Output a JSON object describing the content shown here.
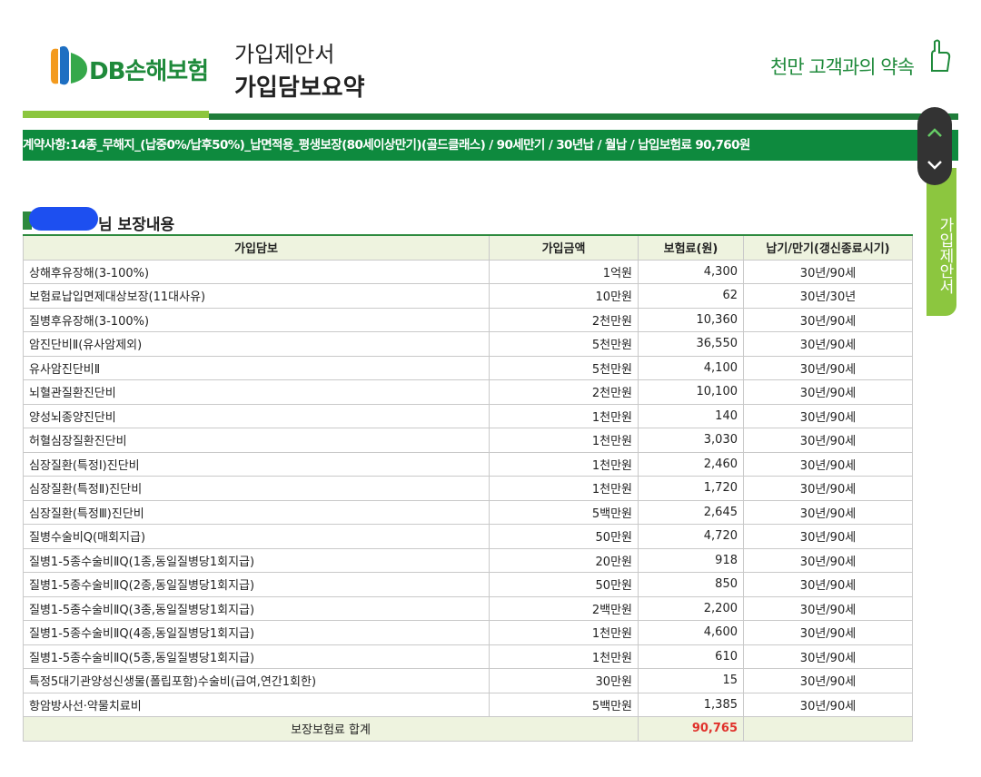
{
  "header": {
    "logo": "DB손해보험",
    "title": "가입제안서",
    "subtitle": "가입담보요약",
    "slogan": "천만 고객과의 약속"
  },
  "banner": "계약사항:14종_무해지_(납중0%/납후50%)_납면적용_평생보장(80세이상만기)(골드클래스) / 90세만기 / 30년납 / 월납 / 납입보험료 90,760원",
  "side_tab": "가입제안서",
  "section_title": "님 보장내용",
  "table": {
    "columns": [
      "가입담보",
      "가입금액",
      "보험료(원)",
      "납기/만기(갱신종료시기)"
    ],
    "rows": [
      [
        "상해후유장해(3-100%)",
        "1억원",
        "4,300",
        "30년/90세"
      ],
      [
        "보험료납입면제대상보장(11대사유)",
        "10만원",
        "62",
        "30년/30년"
      ],
      [
        "질병후유장해(3-100%)",
        "2천만원",
        "10,360",
        "30년/90세"
      ],
      [
        "암진단비Ⅱ(유사암제외)",
        "5천만원",
        "36,550",
        "30년/90세"
      ],
      [
        "유사암진단비Ⅱ",
        "5천만원",
        "4,100",
        "30년/90세"
      ],
      [
        "뇌혈관질환진단비",
        "2천만원",
        "10,100",
        "30년/90세"
      ],
      [
        "양성뇌종양진단비",
        "1천만원",
        "140",
        "30년/90세"
      ],
      [
        "허혈심장질환진단비",
        "1천만원",
        "3,030",
        "30년/90세"
      ],
      [
        "심장질환(특정Ⅰ)진단비",
        "1천만원",
        "2,460",
        "30년/90세"
      ],
      [
        "심장질환(특정Ⅱ)진단비",
        "1천만원",
        "1,720",
        "30년/90세"
      ],
      [
        "심장질환(특정Ⅲ)진단비",
        "5백만원",
        "2,645",
        "30년/90세"
      ],
      [
        "질병수술비Q(매회지급)",
        "50만원",
        "4,720",
        "30년/90세"
      ],
      [
        "질병1-5종수술비ⅡQ(1종,동일질병당1회지급)",
        "20만원",
        "918",
        "30년/90세"
      ],
      [
        "질병1-5종수술비ⅡQ(2종,동일질병당1회지급)",
        "50만원",
        "850",
        "30년/90세"
      ],
      [
        "질병1-5종수술비ⅡQ(3종,동일질병당1회지급)",
        "2백만원",
        "2,200",
        "30년/90세"
      ],
      [
        "질병1-5종수술비ⅡQ(4종,동일질병당1회지급)",
        "1천만원",
        "4,600",
        "30년/90세"
      ],
      [
        "질병1-5종수술비ⅡQ(5종,동일질병당1회지급)",
        "1천만원",
        "610",
        "30년/90세"
      ],
      [
        "특정5대기관양성신생물(폴립포함)수술비(급여,연간1회한)",
        "30만원",
        "15",
        "30년/90세"
      ],
      [
        "항암방사선·약물치료비",
        "5백만원",
        "1,385",
        "30년/90세"
      ]
    ],
    "total": {
      "label": "보장보험료 합계",
      "value": "90,765"
    }
  }
}
